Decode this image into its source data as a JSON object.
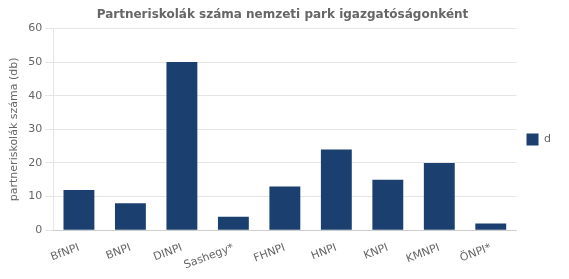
{
  "chart_data": {
    "type": "bar",
    "title": "Partneriskolák száma nemzeti park igazgatóságonként",
    "categories": [
      "BfNPI",
      "BNPI",
      "DINPI",
      "Sashegy*",
      "FHNPI",
      "HNPI",
      "KNPI",
      "KMNPI",
      "ÖNPI*"
    ],
    "series": [
      {
        "name": "d",
        "color": "#1b3f6e",
        "values": [
          12,
          8,
          50,
          4,
          13,
          24,
          15,
          20,
          2
        ]
      }
    ],
    "ylabel": "partneriskolák száma (db)",
    "ylim": [
      0,
      60
    ],
    "yticks": [
      0,
      10,
      20,
      30,
      40,
      50,
      60
    ],
    "grid": true,
    "legend": "right"
  }
}
